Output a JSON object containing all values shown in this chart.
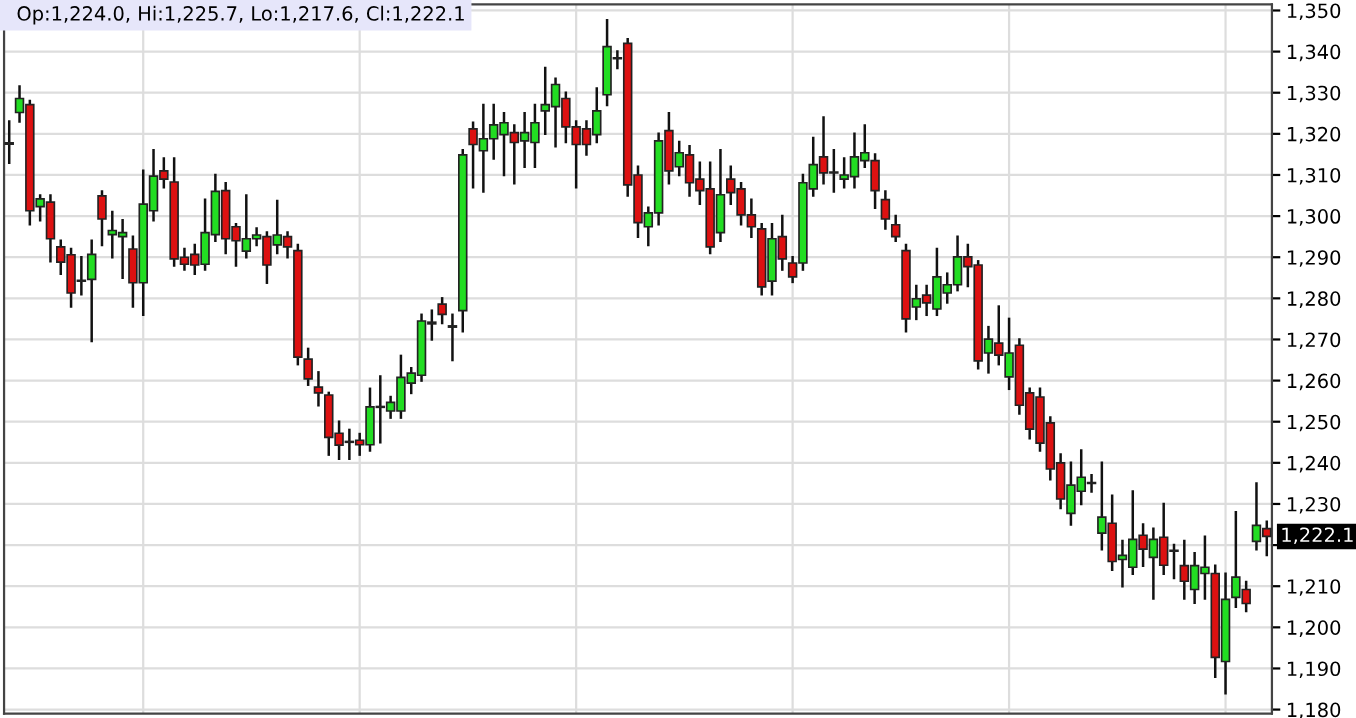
{
  "chart_data": {
    "type": "candlestick",
    "categories": [
      null,
      null,
      null,
      null,
      null,
      null,
      null,
      null,
      null,
      null,
      null,
      null,
      null,
      null,
      null,
      null,
      null,
      null,
      null,
      null,
      null,
      null,
      null,
      null,
      null,
      null,
      null,
      null,
      null,
      null,
      null,
      null,
      null,
      null,
      null,
      null,
      null,
      null,
      null,
      null,
      null,
      null,
      null,
      null,
      null,
      null,
      null,
      null,
      null,
      null,
      null,
      null,
      null,
      null,
      null,
      null,
      null,
      null,
      null,
      null,
      null,
      null,
      null,
      null,
      null,
      null,
      null,
      null,
      null,
      null,
      null,
      null,
      null,
      null,
      null,
      null,
      null,
      null,
      null,
      null,
      null,
      null,
      null,
      null,
      null,
      null,
      null,
      null,
      null,
      null,
      null,
      null,
      null,
      null,
      null,
      null,
      null,
      null,
      null,
      null,
      null,
      null,
      null,
      null,
      null,
      null,
      null,
      null,
      null,
      null,
      null,
      null,
      null,
      null,
      null,
      null,
      null,
      null,
      null,
      null,
      null,
      null,
      null
    ],
    "ohlc": [
      [
        1317.5,
        1323,
        1313,
        1317.8
      ],
      [
        1325.2,
        1331.5,
        1323,
        1328.6
      ],
      [
        1327.1,
        1328,
        1298,
        1301.3
      ],
      [
        1302.3,
        1305,
        1299,
        1304.2
      ],
      [
        1303.4,
        1305,
        1289,
        1294.5
      ],
      [
        1292.5,
        1294,
        1286,
        1288.8
      ],
      [
        1290.6,
        1292,
        1278,
        1281.3
      ],
      [
        1284.2,
        1290,
        1281,
        1284.4
      ],
      [
        1284.6,
        1294,
        1269.6,
        1290.7
      ],
      [
        1304.9,
        1306,
        1293,
        1299.3
      ],
      [
        1295.5,
        1301,
        1290,
        1296.5
      ],
      [
        1295,
        1299,
        1285,
        1296
      ],
      [
        1292,
        1295,
        1278,
        1283.8
      ],
      [
        1283.8,
        1311,
        1276,
        1302.9
      ],
      [
        1301.3,
        1316,
        1299,
        1309.7
      ],
      [
        1311,
        1314,
        1307,
        1309
      ],
      [
        1308.3,
        1314,
        1288,
        1289.6
      ],
      [
        1290,
        1292,
        1287,
        1288.3
      ],
      [
        1290.7,
        1293,
        1286,
        1288.1
      ],
      [
        1288.3,
        1304,
        1287,
        1296
      ],
      [
        1295.5,
        1310,
        1294,
        1306
      ],
      [
        1306.2,
        1308,
        1291,
        1294.5
      ],
      [
        1297.4,
        1298,
        1288,
        1294
      ],
      [
        1291.5,
        1305,
        1290,
        1294.5
      ],
      [
        1294.5,
        1297,
        1293,
        1295.4
      ],
      [
        1295,
        1296,
        1283.8,
        1288.1
      ],
      [
        1293,
        1303.7,
        1291,
        1295.4
      ],
      [
        1295,
        1296,
        1290,
        1292.5
      ],
      [
        1291.6,
        1293,
        1264,
        1265.7
      ],
      [
        1265.2,
        1267.7,
        1259,
        1260.4
      ],
      [
        1258.4,
        1262,
        1254,
        1257
      ],
      [
        1256.5,
        1257,
        1242,
        1246.2
      ],
      [
        1247.2,
        1250,
        1241,
        1244.3
      ],
      [
        1245,
        1248,
        1241,
        1245.2
      ],
      [
        1245.5,
        1247,
        1242,
        1244.4
      ],
      [
        1244.4,
        1258,
        1243,
        1253.6
      ],
      [
        1253.5,
        1261,
        1245,
        1253.7
      ],
      [
        1252.6,
        1256,
        1251,
        1254.7
      ],
      [
        1252.6,
        1266,
        1251,
        1260.8
      ],
      [
        1259.4,
        1263,
        1257,
        1261.8
      ],
      [
        1261.3,
        1276,
        1260,
        1274.5
      ],
      [
        1273.8,
        1277,
        1270,
        1274.2
      ],
      [
        1278.6,
        1280,
        1274,
        1276.1
      ],
      [
        1273,
        1276,
        1265,
        1273.3
      ],
      [
        1277,
        1316,
        1272,
        1314.9
      ],
      [
        1321.2,
        1322.7,
        1307,
        1317.4
      ],
      [
        1315.9,
        1327,
        1306,
        1318.8
      ],
      [
        1318.8,
        1327,
        1314,
        1322.2
      ],
      [
        1319.8,
        1325,
        1310,
        1322.7
      ],
      [
        1320.3,
        1322,
        1308,
        1317.9
      ],
      [
        1318.3,
        1325,
        1312,
        1320.3
      ],
      [
        1317.9,
        1327,
        1312,
        1322.7
      ],
      [
        1325.6,
        1336,
        1320,
        1327.1
      ],
      [
        1326.6,
        1333.4,
        1317,
        1332
      ],
      [
        1328.6,
        1330,
        1318,
        1321.7
      ],
      [
        1321.7,
        1323,
        1307,
        1317.4
      ],
      [
        1321.2,
        1323,
        1315,
        1317.4
      ],
      [
        1319.8,
        1331,
        1318,
        1325.6
      ],
      [
        1329.5,
        1347.6,
        1327,
        1341.2
      ],
      [
        1338.3,
        1340,
        1336,
        1338.5
      ],
      [
        1342,
        1343,
        1305,
        1307.6
      ],
      [
        1310,
        1312,
        1295,
        1298.4
      ],
      [
        1297.4,
        1302,
        1293,
        1300.8
      ],
      [
        1300.8,
        1320,
        1298,
        1318.3
      ],
      [
        1320.8,
        1325,
        1308,
        1311
      ],
      [
        1312,
        1318,
        1310,
        1315.4
      ],
      [
        1314.9,
        1317,
        1305,
        1308.1
      ],
      [
        1309,
        1313,
        1303,
        1306.2
      ],
      [
        1306.6,
        1313,
        1291,
        1292.5
      ],
      [
        1296,
        1316,
        1294,
        1305.2
      ],
      [
        1309,
        1312,
        1303,
        1305.7
      ],
      [
        1306.6,
        1308,
        1298,
        1300.3
      ],
      [
        1300.3,
        1304,
        1295,
        1297.4
      ],
      [
        1296.9,
        1298,
        1281,
        1282.8
      ],
      [
        1284.2,
        1298,
        1281,
        1294.5
      ],
      [
        1295,
        1300,
        1287,
        1289.6
      ],
      [
        1288.6,
        1290,
        1284,
        1285.2
      ],
      [
        1288.6,
        1310,
        1287,
        1308.1
      ],
      [
        1306.6,
        1319,
        1305,
        1312.5
      ],
      [
        1314.4,
        1324,
        1308,
        1310.5
      ],
      [
        1310.5,
        1316,
        1306,
        1310.7
      ],
      [
        1309,
        1314,
        1307,
        1310
      ],
      [
        1309.6,
        1320,
        1307,
        1314.4
      ],
      [
        1313.5,
        1322,
        1312,
        1315.4
      ],
      [
        1313.5,
        1315,
        1302,
        1306.2
      ],
      [
        1304,
        1306,
        1297,
        1299.3
      ],
      [
        1297.9,
        1300,
        1294,
        1295
      ],
      [
        1291.6,
        1293,
        1272,
        1275
      ],
      [
        1277.9,
        1283,
        1275,
        1279.9
      ],
      [
        1280.8,
        1283,
        1276,
        1278.9
      ],
      [
        1277.4,
        1292,
        1276,
        1285.2
      ],
      [
        1281.3,
        1286,
        1279,
        1283.3
      ],
      [
        1283.3,
        1295,
        1282,
        1290.1
      ],
      [
        1290.1,
        1293,
        1283,
        1287.7
      ],
      [
        1288.1,
        1289,
        1263,
        1264.8
      ],
      [
        1266.7,
        1273,
        1262,
        1270.1
      ],
      [
        1269.1,
        1278,
        1264,
        1266.2
      ],
      [
        1260.9,
        1275,
        1258,
        1266.7
      ],
      [
        1268.6,
        1270,
        1252,
        1254
      ],
      [
        1257,
        1258,
        1246,
        1248.2
      ],
      [
        1256,
        1258,
        1243,
        1244.8
      ],
      [
        1249.7,
        1251,
        1236,
        1238.5
      ],
      [
        1240,
        1242,
        1229,
        1231.2
      ],
      [
        1227.7,
        1240,
        1225,
        1234.6
      ],
      [
        1233.1,
        1243,
        1230,
        1236.5
      ],
      [
        1235,
        1237,
        1233,
        1235.2
      ],
      [
        1222.9,
        1240,
        1219,
        1226.8
      ],
      [
        1225.3,
        1232,
        1214,
        1216
      ],
      [
        1216.5,
        1221,
        1210,
        1217.5
      ],
      [
        1214.6,
        1233,
        1213,
        1221.4
      ],
      [
        1222.4,
        1225,
        1215,
        1219
      ],
      [
        1217,
        1224,
        1207,
        1221.4
      ],
      [
        1221.9,
        1230,
        1213,
        1215.1
      ],
      [
        1218.5,
        1220,
        1212,
        1218.7
      ],
      [
        1215,
        1221,
        1207,
        1211.2
      ],
      [
        1209.2,
        1218,
        1206,
        1215
      ],
      [
        1213.1,
        1222,
        1207,
        1214.6
      ],
      [
        1213.1,
        1215,
        1188,
        1192.7
      ],
      [
        1191.7,
        1213,
        1184,
        1206.8
      ],
      [
        1207.3,
        1228,
        1205,
        1212.2
      ],
      [
        1209.2,
        1211,
        1204,
        1205.8
      ],
      [
        1220.9,
        1235,
        1219,
        1224.8
      ],
      [
        1224.0,
        1225.7,
        1217.6,
        1222.1
      ]
    ],
    "colors": [
      "#22dd22",
      "#22dd22",
      "#dd1111",
      "#22dd22",
      "#dd1111",
      "#dd1111",
      "#dd1111",
      "#22dd22",
      "#22dd22",
      "#dd1111",
      "#22dd22",
      "#22dd22",
      "#dd1111",
      "#22dd22",
      "#22dd22",
      "#dd1111",
      "#dd1111",
      "#dd1111",
      "#dd1111",
      "#22dd22",
      "#22dd22",
      "#dd1111",
      "#dd1111",
      "#22dd22",
      "#22dd22",
      "#dd1111",
      "#22dd22",
      "#dd1111",
      "#dd1111",
      "#dd1111",
      "#dd1111",
      "#dd1111",
      "#dd1111",
      "#22dd22",
      "#dd1111",
      "#22dd22",
      "#22dd22",
      "#22dd22",
      "#22dd22",
      "#22dd22",
      "#22dd22",
      "#22dd22",
      "#dd1111",
      "#22dd22",
      "#22dd22",
      "#dd1111",
      "#22dd22",
      "#22dd22",
      "#22dd22",
      "#dd1111",
      "#22dd22",
      "#22dd22",
      "#22dd22",
      "#22dd22",
      "#dd1111",
      "#dd1111",
      "#dd1111",
      "#22dd22",
      "#22dd22",
      "#22dd22",
      "#dd1111",
      "#dd1111",
      "#22dd22",
      "#22dd22",
      "#dd1111",
      "#22dd22",
      "#dd1111",
      "#dd1111",
      "#dd1111",
      "#22dd22",
      "#dd1111",
      "#dd1111",
      "#dd1111",
      "#dd1111",
      "#22dd22",
      "#dd1111",
      "#dd1111",
      "#22dd22",
      "#22dd22",
      "#dd1111",
      "#22dd22",
      "#22dd22",
      "#22dd22",
      "#22dd22",
      "#dd1111",
      "#dd1111",
      "#dd1111",
      "#dd1111",
      "#22dd22",
      "#dd1111",
      "#22dd22",
      "#22dd22",
      "#22dd22",
      "#dd1111",
      "#dd1111",
      "#22dd22",
      "#dd1111",
      "#22dd22",
      "#dd1111",
      "#dd1111",
      "#dd1111",
      "#dd1111",
      "#dd1111",
      "#22dd22",
      "#22dd22",
      "#22dd22",
      "#22dd22",
      "#dd1111",
      "#22dd22",
      "#22dd22",
      "#dd1111",
      "#22dd22",
      "#dd1111",
      "#22dd22",
      "#dd1111",
      "#22dd22",
      "#22dd22",
      "#dd1111",
      "#22dd22",
      "#22dd22",
      "#dd1111",
      "#22dd22",
      "#dd1111"
    ],
    "ylim": [
      1179,
      1351.5
    ],
    "yticks": [
      {
        "value": 1180,
        "label": "1,180"
      },
      {
        "value": 1190,
        "label": "1,190"
      },
      {
        "value": 1200,
        "label": "1,200"
      },
      {
        "value": 1210,
        "label": "1,210"
      },
      {
        "value": 1220,
        "label": null
      },
      {
        "value": 1230,
        "label": "1,230"
      },
      {
        "value": 1240,
        "label": "1,240"
      },
      {
        "value": 1250,
        "label": "1,250"
      },
      {
        "value": 1260,
        "label": "1,260"
      },
      {
        "value": 1270,
        "label": "1,270"
      },
      {
        "value": 1280,
        "label": "1,280"
      },
      {
        "value": 1290,
        "label": "1,290"
      },
      {
        "value": 1300,
        "label": "1,300"
      },
      {
        "value": 1310,
        "label": "1,310"
      },
      {
        "value": 1320,
        "label": "1,320"
      },
      {
        "value": 1330,
        "label": "1,330"
      },
      {
        "value": 1340,
        "label": "1,340"
      },
      {
        "value": 1350,
        "label": "1,350"
      }
    ],
    "grid": true,
    "tick_labels": "y",
    "annotations": [
      "Op:1,224.0, Hi:1,225.7, Lo:1,217.6, Cl:1,222.1",
      "1,222.1"
    ]
  }
}
